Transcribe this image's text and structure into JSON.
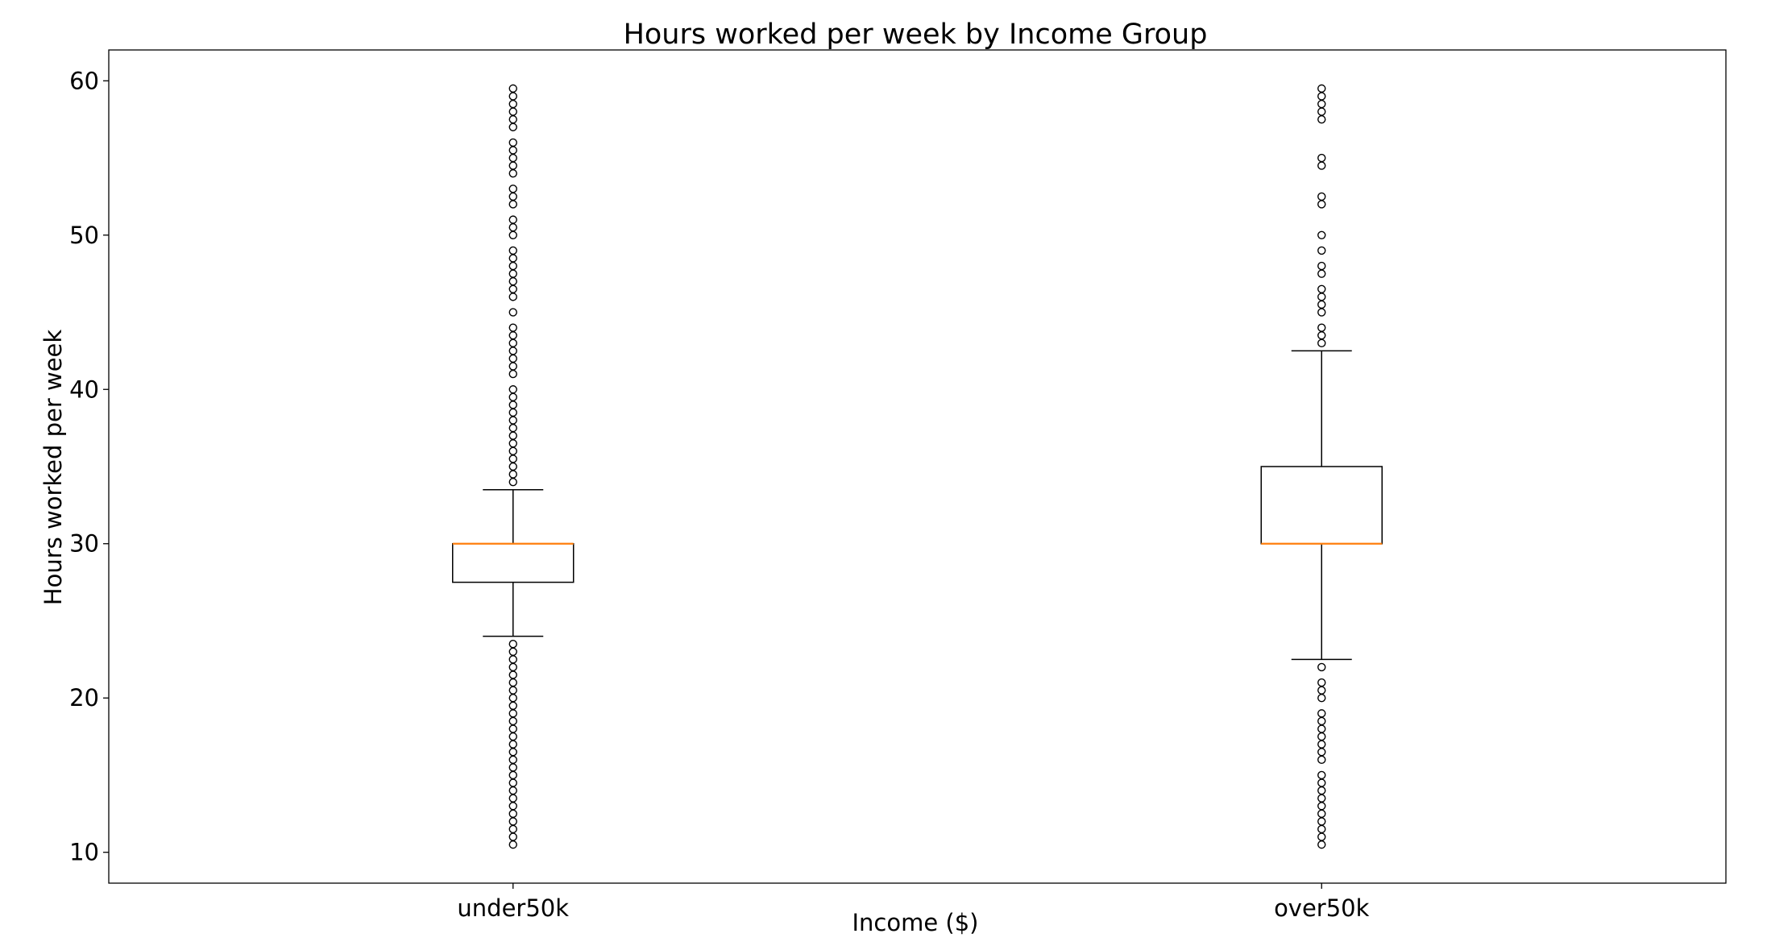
{
  "chart_data": {
    "type": "box",
    "title": "Hours worked per week by Income Group",
    "xlabel": "Income ($)",
    "ylabel": "Hours worked per week",
    "ylim": [
      8,
      62
    ],
    "yticks": [
      10,
      20,
      30,
      40,
      50,
      60
    ],
    "grid": false,
    "median_color": "#ff7f0e",
    "groups": [
      {
        "label": "under50k",
        "whisker_low": 24,
        "q1": 27.5,
        "median": 30,
        "q3": 30,
        "whisker_high": 33.5,
        "fliers": [
          10.5,
          11,
          11.5,
          12,
          12.5,
          13,
          13.5,
          14,
          14.5,
          15,
          15.5,
          16,
          16.5,
          17,
          17.5,
          18,
          18.5,
          19,
          19.5,
          20,
          20.5,
          21,
          21.5,
          22,
          22.5,
          23,
          23.5,
          34,
          34.5,
          35,
          35.5,
          36,
          36.5,
          37,
          37.5,
          38,
          38.5,
          39,
          39.5,
          40,
          41,
          41.5,
          42,
          42.5,
          43,
          43.5,
          44,
          45,
          46,
          46.5,
          47,
          47.5,
          48,
          48.5,
          49,
          50,
          50.5,
          51,
          52,
          52.5,
          53,
          54,
          54.5,
          55,
          55.5,
          56,
          57,
          57.5,
          58,
          58.5,
          59,
          59.5
        ]
      },
      {
        "label": "over50k",
        "whisker_low": 22.5,
        "q1": 30,
        "median": 30,
        "q3": 35,
        "whisker_high": 42.5,
        "fliers": [
          10.5,
          11,
          11.5,
          12,
          12.5,
          13,
          13.5,
          14,
          14.5,
          15,
          16,
          16.5,
          17,
          17.5,
          18,
          18.5,
          19,
          20,
          20.5,
          21,
          22,
          43,
          43.5,
          44,
          45,
          45.5,
          46,
          46.5,
          47.5,
          48,
          49,
          50,
          52,
          52.5,
          54.5,
          55,
          57.5,
          58,
          58.5,
          59,
          59.5
        ]
      }
    ]
  }
}
